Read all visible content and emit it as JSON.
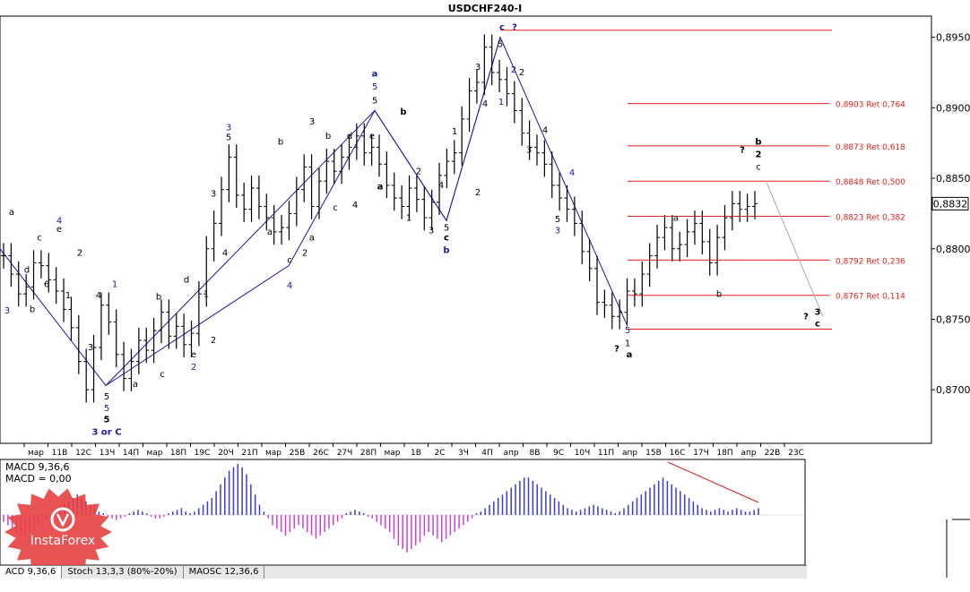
{
  "window": {
    "title": "USDCHF240-I",
    "current_price_label": "0,8832"
  },
  "indicator": {
    "macd_line1": "MACD 9,36,6",
    "macd_line2": "MACD = 0,00"
  },
  "tabs": [
    {
      "label": "ACD 9,36,6"
    },
    {
      "label": "Stoch 13,3,3 (80%-20%)"
    },
    {
      "label": "MAOSC 12,36,6"
    }
  ],
  "logo": {
    "text": "InstaForex"
  },
  "colors": {
    "wave_blue": "#1a1aa8",
    "fib_red": "#e02020",
    "macd_pos": "#3a3ae0",
    "macd_neg": "#d040d0",
    "candle": "#000000"
  },
  "chart_data": {
    "type": "candlestick",
    "symbol": "USDCHF240-I",
    "y_axis": {
      "ticks": [
        "0,8950",
        "0,8900",
        "0,8850",
        "0,8800",
        "0,8750",
        "0,8700"
      ],
      "tick_values": [
        0.895,
        0.89,
        0.885,
        0.88,
        0.875,
        0.87
      ],
      "ylim": [
        0.8662,
        0.8965
      ],
      "current_price": 0.8832
    },
    "x_axis": {
      "ticks": [
        "мар",
        "11В",
        "12С",
        "13Ч",
        "14П",
        "мар",
        "18П",
        "19С",
        "20Ч",
        "21П",
        "мар",
        "25В",
        "26С",
        "27Ч",
        "28П",
        "мар",
        "1В",
        "2С",
        "3Ч",
        "4П",
        "апр",
        "8В",
        "9С",
        "10Ч",
        "11П",
        "апр",
        "15В",
        "16С",
        "17Ч",
        "18П",
        "апр",
        "22В",
        "23С"
      ]
    },
    "fibonacci_levels": [
      {
        "label": "0,8903 Ret 0,764",
        "value": 0.8903
      },
      {
        "label": "0,8873 Ret 0,618",
        "value": 0.8873
      },
      {
        "label": "0,8848 Ret 0,500",
        "value": 0.8848
      },
      {
        "label": "0,8823 Ret 0,382",
        "value": 0.8823
      },
      {
        "label": "0,8792 Ret 0,236",
        "value": 0.8792
      },
      {
        "label": "0,8767 Ret 0,114",
        "value": 0.8767
      }
    ],
    "horizontal_lines": [
      {
        "value": 0.8955
      },
      {
        "value": 0.8743
      }
    ],
    "price_path": [
      0.8795,
      0.8782,
      0.8768,
      0.8773,
      0.879,
      0.8788,
      0.8778,
      0.877,
      0.8757,
      0.8744,
      0.872,
      0.87,
      0.873,
      0.876,
      0.8748,
      0.8725,
      0.8708,
      0.872,
      0.8735,
      0.8728,
      0.8742,
      0.8755,
      0.8738,
      0.8745,
      0.8732,
      0.874,
      0.8768,
      0.88,
      0.8818,
      0.8842,
      0.8865,
      0.8838,
      0.8828,
      0.8843,
      0.883,
      0.8822,
      0.8812,
      0.8815,
      0.8825,
      0.8842,
      0.8858,
      0.883,
      0.8848,
      0.8862,
      0.8855,
      0.8865,
      0.8872,
      0.888,
      0.8868,
      0.8872,
      0.886,
      0.8845,
      0.8836,
      0.883,
      0.8843,
      0.8835,
      0.8822,
      0.8833,
      0.8852,
      0.8862,
      0.8868,
      0.8892,
      0.8912,
      0.8918,
      0.8943,
      0.8925,
      0.892,
      0.891,
      0.8898,
      0.8882,
      0.8872,
      0.8868,
      0.886,
      0.8845,
      0.8836,
      0.8828,
      0.8818,
      0.8798,
      0.8786,
      0.8762,
      0.876,
      0.8752,
      0.8755,
      0.877,
      0.8768,
      0.8782,
      0.8795,
      0.8808,
      0.8815,
      0.88,
      0.8803,
      0.8812,
      0.8818,
      0.8805,
      0.879,
      0.8808,
      0.8822,
      0.8832,
      0.8828,
      0.883,
      0.8832
    ],
    "wave_lines": [
      [
        [
          0,
          0.88
        ],
        [
          118,
          0.8703
        ],
        [
          322,
          0.8788
        ],
        [
          418,
          0.8898
        ],
        [
          498,
          0.882
        ],
        [
          558,
          0.895
        ],
        [
          700,
          0.8745
        ]
      ]
    ],
    "projection_lines": [
      [
        [
          855,
          0.8847
        ],
        [
          918,
          0.8752
        ]
      ]
    ],
    "trend_lines": [
      [
        [
          118,
          0.8703
        ],
        [
          418,
          0.8898
        ],
        [
          498,
          0.882
        ],
        [
          558,
          0.895
        ]
      ]
    ],
    "wave_labels": [
      {
        "text": "c",
        "x": 560,
        "v": 0.8955,
        "color": "blue",
        "bold": true
      },
      {
        "text": "?",
        "x": 574,
        "v": 0.8955,
        "color": "blue",
        "bold": true
      },
      {
        "text": "5",
        "x": 558,
        "v": 0.8943,
        "color": "black"
      },
      {
        "text": "a",
        "x": 418,
        "v": 0.8922,
        "color": "blue",
        "bold": true
      },
      {
        "text": "5",
        "x": 418,
        "v": 0.8913,
        "color": "blue"
      },
      {
        "text": "5",
        "x": 418,
        "v": 0.8903,
        "color": "black"
      },
      {
        "text": "b",
        "x": 450,
        "v": 0.8895,
        "color": "black",
        "bold": true
      },
      {
        "text": "3",
        "x": 348,
        "v": 0.8888,
        "color": "black"
      },
      {
        "text": "b",
        "x": 366,
        "v": 0.8878,
        "color": "black"
      },
      {
        "text": "d",
        "x": 390,
        "v": 0.8878,
        "color": "black"
      },
      {
        "text": "e",
        "x": 415,
        "v": 0.8878,
        "color": "black"
      },
      {
        "text": "3",
        "x": 255,
        "v": 0.8884,
        "color": "blue"
      },
      {
        "text": "5",
        "x": 255,
        "v": 0.8877,
        "color": "black"
      },
      {
        "text": "b",
        "x": 313,
        "v": 0.8874,
        "color": "black"
      },
      {
        "text": "2",
        "x": 573,
        "v": 0.8925,
        "color": "blue"
      },
      {
        "text": "2",
        "x": 582,
        "v": 0.8923,
        "color": "black"
      },
      {
        "text": "3",
        "x": 533,
        "v": 0.8927,
        "color": "black"
      },
      {
        "text": "4",
        "x": 541,
        "v": 0.8901,
        "color": "black"
      },
      {
        "text": "1",
        "x": 559,
        "v": 0.8902,
        "color": "blue"
      },
      {
        "text": "1",
        "x": 507,
        "v": 0.8881,
        "color": "black"
      },
      {
        "text": "4",
        "x": 608,
        "v": 0.8882,
        "color": "black"
      },
      {
        "text": "3",
        "x": 590,
        "v": 0.8868,
        "color": "black"
      },
      {
        "text": "4",
        "x": 638,
        "v": 0.8852,
        "color": "blue"
      },
      {
        "text": "5",
        "x": 622,
        "v": 0.8819,
        "color": "black"
      },
      {
        "text": "3",
        "x": 622,
        "v": 0.8811,
        "color": "blue"
      },
      {
        "text": "2",
        "x": 467,
        "v": 0.8853,
        "color": "black"
      },
      {
        "text": "a",
        "x": 424,
        "v": 0.8842,
        "color": "black",
        "bold": true
      },
      {
        "text": "4",
        "x": 492,
        "v": 0.8843,
        "color": "black"
      },
      {
        "text": "2",
        "x": 533,
        "v": 0.8838,
        "color": "black"
      },
      {
        "text": "1",
        "x": 456,
        "v": 0.882,
        "color": "black"
      },
      {
        "text": "3",
        "x": 481,
        "v": 0.8811,
        "color": "black"
      },
      {
        "text": "5",
        "x": 498,
        "v": 0.8813,
        "color": "black"
      },
      {
        "text": "c",
        "x": 498,
        "v": 0.8806,
        "color": "black",
        "bold": true
      },
      {
        "text": "b",
        "x": 498,
        "v": 0.8797,
        "color": "blue",
        "bold": true
      },
      {
        "text": "3",
        "x": 238,
        "v": 0.8837,
        "color": "black"
      },
      {
        "text": "4",
        "x": 251,
        "v": 0.8795,
        "color": "black"
      },
      {
        "text": "c",
        "x": 323,
        "v": 0.879,
        "color": "black"
      },
      {
        "text": "4",
        "x": 323,
        "v": 0.8772,
        "color": "blue"
      },
      {
        "text": "2",
        "x": 340,
        "v": 0.8795,
        "color": "black"
      },
      {
        "text": "a",
        "x": 301,
        "v": 0.881,
        "color": "black"
      },
      {
        "text": "a",
        "x": 348,
        "v": 0.8806,
        "color": "black"
      },
      {
        "text": "c",
        "x": 374,
        "v": 0.8827,
        "color": "black"
      },
      {
        "text": "4",
        "x": 396,
        "v": 0.8829,
        "color": "black"
      },
      {
        "text": "a",
        "x": 13,
        "v": 0.8824,
        "color": "black"
      },
      {
        "text": "4",
        "x": 66,
        "v": 0.8818,
        "color": "blue"
      },
      {
        "text": "e",
        "x": 66,
        "v": 0.8812,
        "color": "black"
      },
      {
        "text": "c",
        "x": 44,
        "v": 0.8806,
        "color": "black"
      },
      {
        "text": "2",
        "x": 89,
        "v": 0.8795,
        "color": "black"
      },
      {
        "text": "d",
        "x": 30,
        "v": 0.8783,
        "color": "black"
      },
      {
        "text": "6",
        "x": 52,
        "v": 0.8773,
        "color": "black"
      },
      {
        "text": "1",
        "x": 76,
        "v": 0.8765,
        "color": "black"
      },
      {
        "text": "b",
        "x": 36,
        "v": 0.8755,
        "color": "black"
      },
      {
        "text": "3",
        "x": 8,
        "v": 0.8754,
        "color": "blue"
      },
      {
        "text": "4",
        "x": 110,
        "v": 0.8765,
        "color": "black"
      },
      {
        "text": "3",
        "x": 101,
        "v": 0.8728,
        "color": "black"
      },
      {
        "text": "1",
        "x": 128,
        "v": 0.8773,
        "color": "blue"
      },
      {
        "text": "b",
        "x": 177,
        "v": 0.8764,
        "color": "black"
      },
      {
        "text": "d",
        "x": 208,
        "v": 0.8776,
        "color": "black"
      },
      {
        "text": "1",
        "x": 230,
        "v": 0.8766,
        "color": "black"
      },
      {
        "text": "c",
        "x": 181,
        "v": 0.8709,
        "color": "black"
      },
      {
        "text": "a",
        "x": 151,
        "v": 0.8702,
        "color": "black"
      },
      {
        "text": "e",
        "x": 216,
        "v": 0.8723,
        "color": "black"
      },
      {
        "text": "2",
        "x": 216,
        "v": 0.8714,
        "color": "blue"
      },
      {
        "text": "2",
        "x": 238,
        "v": 0.8733,
        "color": "black"
      },
      {
        "text": "5",
        "x": 119,
        "v": 0.8693,
        "color": "black"
      },
      {
        "text": "5",
        "x": 119,
        "v": 0.8685,
        "color": "blue"
      },
      {
        "text": "5",
        "x": 119,
        "v": 0.8677,
        "color": "black",
        "bold": true
      },
      {
        "text": "3 or C",
        "x": 119,
        "v": 0.8668,
        "color": "blue",
        "bold": true
      },
      {
        "text": "a",
        "x": 754,
        "v": 0.882,
        "color": "black"
      },
      {
        "text": "b",
        "x": 802,
        "v": 0.8766,
        "color": "black"
      },
      {
        "text": "5",
        "x": 700,
        "v": 0.874,
        "color": "blue"
      },
      {
        "text": "1",
        "x": 700,
        "v": 0.8731,
        "color": "black"
      },
      {
        "text": "a",
        "x": 702,
        "v": 0.8723,
        "color": "black",
        "bold": true
      },
      {
        "text": "?",
        "x": 688,
        "v": 0.8727,
        "color": "black",
        "bold": true
      },
      {
        "text": "?",
        "x": 828,
        "v": 0.8868,
        "color": "black",
        "bold": true
      },
      {
        "text": "b",
        "x": 846,
        "v": 0.8874,
        "color": "black",
        "bold": true
      },
      {
        "text": "2",
        "x": 846,
        "v": 0.8865,
        "color": "black",
        "bold": true
      },
      {
        "text": "c",
        "x": 846,
        "v": 0.8856,
        "color": "black"
      },
      {
        "text": "?",
        "x": 899,
        "v": 0.875,
        "color": "black",
        "bold": true
      },
      {
        "text": "3",
        "x": 912,
        "v": 0.8753,
        "color": "black",
        "bold": true
      },
      {
        "text": "c",
        "x": 912,
        "v": 0.8745,
        "color": "black",
        "bold": true
      }
    ],
    "macd": {
      "name": "MACD 9,36,6",
      "histogram": [
        -4,
        -6,
        -8,
        -10,
        -12,
        -14,
        -10,
        -8,
        -6,
        -4,
        -2,
        -1,
        2,
        4,
        6,
        8,
        10,
        12,
        10,
        8,
        6,
        4,
        2,
        1,
        -1,
        -2,
        -3,
        -2,
        -1,
        1,
        2,
        3,
        2,
        1,
        -1,
        -2,
        -2,
        -1,
        1,
        2,
        3,
        4,
        2,
        1,
        2,
        4,
        6,
        8,
        10,
        14,
        18,
        22,
        26,
        28,
        30,
        28,
        24,
        18,
        12,
        6,
        2,
        -2,
        -6,
        -8,
        -10,
        -12,
        -10,
        -8,
        -6,
        -8,
        -10,
        -12,
        -14,
        -12,
        -10,
        -8,
        -6,
        -4,
        -2,
        1,
        2,
        3,
        2,
        1,
        -1,
        -2,
        -4,
        -6,
        -8,
        -10,
        -14,
        -18,
        -20,
        -22,
        -20,
        -18,
        -16,
        -12,
        -10,
        -12,
        -14,
        -16,
        -14,
        -12,
        -10,
        -8,
        -6,
        -4,
        -2,
        1,
        2,
        4,
        6,
        8,
        10,
        12,
        14,
        16,
        18,
        20,
        22,
        22,
        20,
        18,
        16,
        14,
        12,
        10,
        8,
        6,
        4,
        3,
        2,
        3,
        4,
        5,
        6,
        5,
        4,
        3,
        2,
        1,
        2,
        4,
        6,
        8,
        10,
        12,
        14,
        16,
        18,
        20,
        22,
        20,
        18,
        16,
        14,
        12,
        10,
        8,
        6,
        4,
        3,
        2,
        3,
        4,
        3,
        2,
        3,
        4,
        3,
        2,
        2,
        3,
        4
      ]
    }
  }
}
